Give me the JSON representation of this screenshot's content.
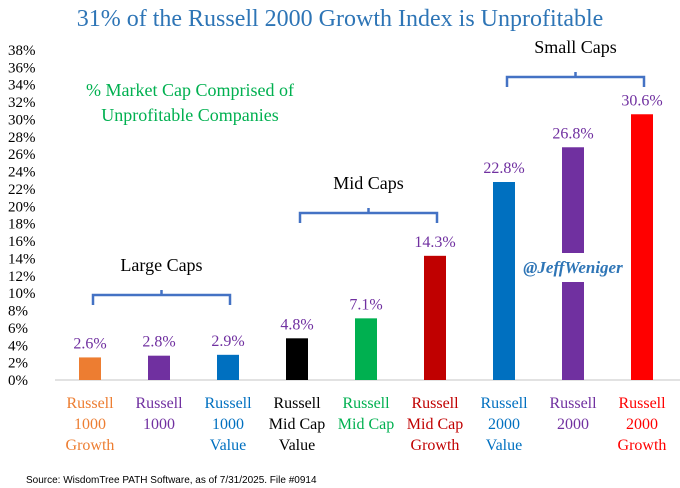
{
  "chart_data": {
    "type": "bar",
    "title": "31% of the Russell 2000 Growth Index is Unprofitable",
    "subtitle": [
      "% Market Cap Comprised of",
      "Unprofitable Companies"
    ],
    "categories": [
      [
        "Russell",
        "1000",
        "Growth"
      ],
      [
        "Russell",
        "1000"
      ],
      [
        "Russell",
        "1000",
        "Value"
      ],
      [
        "Russell",
        "Mid Cap",
        "Value"
      ],
      [
        "Russell",
        "Mid Cap"
      ],
      [
        "Russell",
        "Mid Cap",
        "Growth"
      ],
      [
        "Russell",
        "2000",
        "Value"
      ],
      [
        "Russell",
        "2000"
      ],
      [
        "Russell",
        "2000",
        "Growth"
      ]
    ],
    "values": [
      2.6,
      2.8,
      2.9,
      4.8,
      7.1,
      14.3,
      22.8,
      26.8,
      30.6
    ],
    "value_labels": [
      "2.6%",
      "2.8%",
      "2.9%",
      "4.8%",
      "7.1%",
      "14.3%",
      "22.8%",
      "26.8%",
      "30.6%"
    ],
    "colors": [
      "#ED7D31",
      "#7030A0",
      "#0070C0",
      "#000000",
      "#00B050",
      "#C00000",
      "#0070C0",
      "#7030A0",
      "#FF0000"
    ],
    "value_label_color": "#7030A0",
    "ylim": [
      0,
      38
    ],
    "yticks": [
      "0%",
      "2%",
      "4%",
      "6%",
      "8%",
      "10%",
      "12%",
      "14%",
      "16%",
      "18%",
      "20%",
      "22%",
      "24%",
      "26%",
      "28%",
      "30%",
      "32%",
      "34%",
      "36%",
      "38%"
    ],
    "groups": [
      {
        "label": "Large Caps",
        "from": 0,
        "to": 2
      },
      {
        "label": "Mid Caps",
        "from": 3,
        "to": 5
      },
      {
        "label": "Small Caps",
        "from": 6,
        "to": 8
      }
    ],
    "grid": false,
    "xlabel": "",
    "ylabel": ""
  },
  "watermark": "@JeffWeniger",
  "source": "Source: WisdomTree PATH Software, as of 7/31/2025. File #0914"
}
